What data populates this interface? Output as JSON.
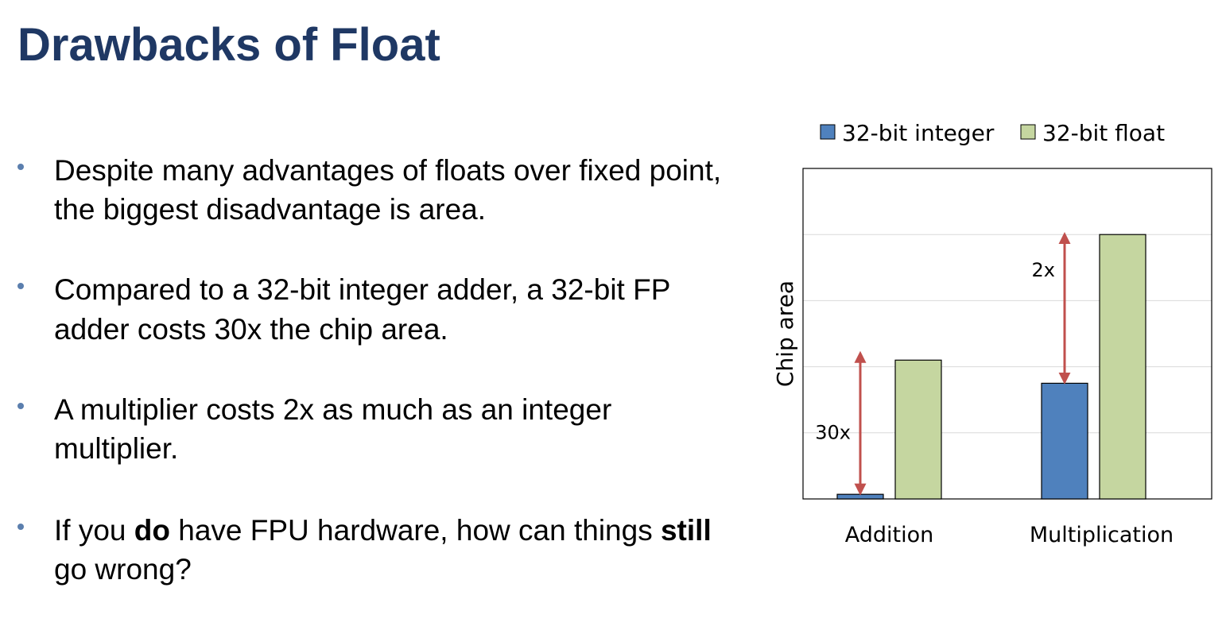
{
  "slide": {
    "title": "Drawbacks of Float",
    "bullets": [
      {
        "parts": [
          {
            "text": "Despite many advantages of floats over fixed point, the biggest disadvantage is area.",
            "bold": false
          }
        ]
      },
      {
        "parts": [
          {
            "text": "Compared to a 32-bit integer adder, a 32-bit FP adder costs 30x the chip area.",
            "bold": false
          }
        ]
      },
      {
        "parts": [
          {
            "text": "A multiplier costs 2x as much as an integer multiplier.",
            "bold": false
          }
        ]
      },
      {
        "parts": [
          {
            "text": "If you ",
            "bold": false
          },
          {
            "text": "do",
            "bold": true
          },
          {
            "text": " have FPU hardware, how can things ",
            "bold": false
          },
          {
            "text": "still",
            "bold": true
          },
          {
            "text": " go wrong?",
            "bold": false
          }
        ]
      }
    ]
  },
  "chart_data": {
    "type": "bar",
    "title": "",
    "xlabel": "",
    "ylabel": "Chip area",
    "categories": [
      "Addition",
      "Multiplication"
    ],
    "series": [
      {
        "name": "32-bit integer",
        "color": "#4f81bd",
        "values": [
          0.7,
          17.5
        ]
      },
      {
        "name": "32-bit float",
        "color": "#c5d6a0",
        "values": [
          21,
          40
        ]
      }
    ],
    "ylim": [
      0,
      50
    ],
    "grid": true,
    "legend": "top",
    "annotations": [
      {
        "text": "30x",
        "category": "Addition",
        "from": 0.7,
        "to": 21,
        "color": "#c0504d"
      },
      {
        "text": "2x",
        "category": "Multiplication",
        "from": 17.5,
        "to": 39,
        "color": "#c0504d"
      }
    ]
  }
}
